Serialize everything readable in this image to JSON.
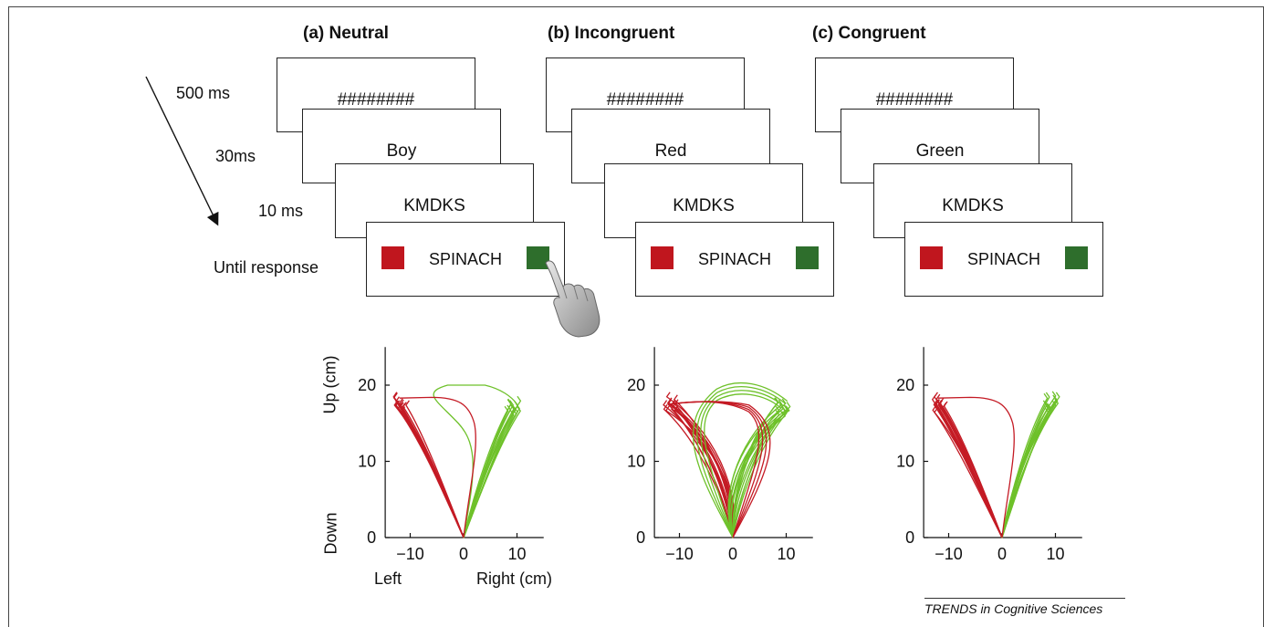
{
  "colors": {
    "red": "#c0161e",
    "green": "#2e6e2c",
    "traj_red": "#c41a24",
    "traj_green": "#6ec12a"
  },
  "timing_labels": [
    "500 ms",
    "30ms",
    "10 ms",
    "Until response"
  ],
  "panels": [
    {
      "title": "(a) Neutral",
      "mask": "########",
      "prime": "Boy",
      "backward_mask": "KMDKS",
      "target": "SPINACH",
      "hand": true
    },
    {
      "title": "(b) Incongruent",
      "mask": "########",
      "prime": "Red",
      "backward_mask": "KMDKS",
      "target": "SPINACH",
      "hand": false
    },
    {
      "title": "(c) Congruent",
      "mask": "########",
      "prime": "Green",
      "backward_mask": "KMDKS",
      "target": "SPINACH",
      "hand": false
    }
  ],
  "axis_labels": {
    "up": "Up (cm)",
    "down": "Down",
    "left": "Left",
    "right": "Right (cm)"
  },
  "credit": "TRENDS in Cognitive Sciences",
  "chart_data": [
    {
      "type": "line",
      "panel": "(a) Neutral",
      "xlim": [
        -14,
        15
      ],
      "ylim": [
        0,
        25
      ],
      "xticks": [
        -10,
        0,
        10
      ],
      "yticks": [
        0,
        10,
        20
      ],
      "xtick_labels": [
        "−10",
        "0",
        "10"
      ],
      "ytick_labels": [
        "0",
        "10",
        "20"
      ],
      "grid": false,
      "endpoints": {
        "red": [
          -12,
          17.5
        ],
        "green": [
          9.5,
          17
        ]
      },
      "atypical_red": 1,
      "atypical_green": 1,
      "curvature_red": [
        0.2,
        1.2
      ],
      "curvature_green": [
        0.2,
        1.2
      ]
    },
    {
      "type": "line",
      "panel": "(b) Incongruent",
      "xlim": [
        -14,
        15
      ],
      "ylim": [
        0,
        25
      ],
      "xticks": [
        -10,
        0,
        10
      ],
      "yticks": [
        0,
        10,
        20
      ],
      "xtick_labels": [
        "−10",
        "0",
        "10"
      ],
      "ytick_labels": [
        "0",
        "10",
        "20"
      ],
      "grid": false,
      "endpoints": {
        "red": [
          -12,
          17.5
        ],
        "green": [
          9.5,
          17
        ]
      },
      "atypical_red": 0,
      "atypical_green": 0,
      "curvature_red": [
        1.5,
        6.5
      ],
      "curvature_green": [
        1.5,
        6.5
      ]
    },
    {
      "type": "line",
      "panel": "(c) Congruent",
      "xlim": [
        -14,
        15
      ],
      "ylim": [
        0,
        25
      ],
      "xticks": [
        -10,
        0,
        10
      ],
      "yticks": [
        0,
        10,
        20
      ],
      "xtick_labels": [
        "−10",
        "0",
        "10"
      ],
      "ytick_labels": [
        "0",
        "10",
        "20"
      ],
      "grid": false,
      "endpoints": {
        "red": [
          -12,
          17.5
        ],
        "green": [
          9.5,
          17.5
        ]
      },
      "atypical_red": 1,
      "atypical_green": 0,
      "curvature_red": [
        0.1,
        1.0
      ],
      "curvature_green": [
        0.3,
        2.0
      ]
    }
  ]
}
